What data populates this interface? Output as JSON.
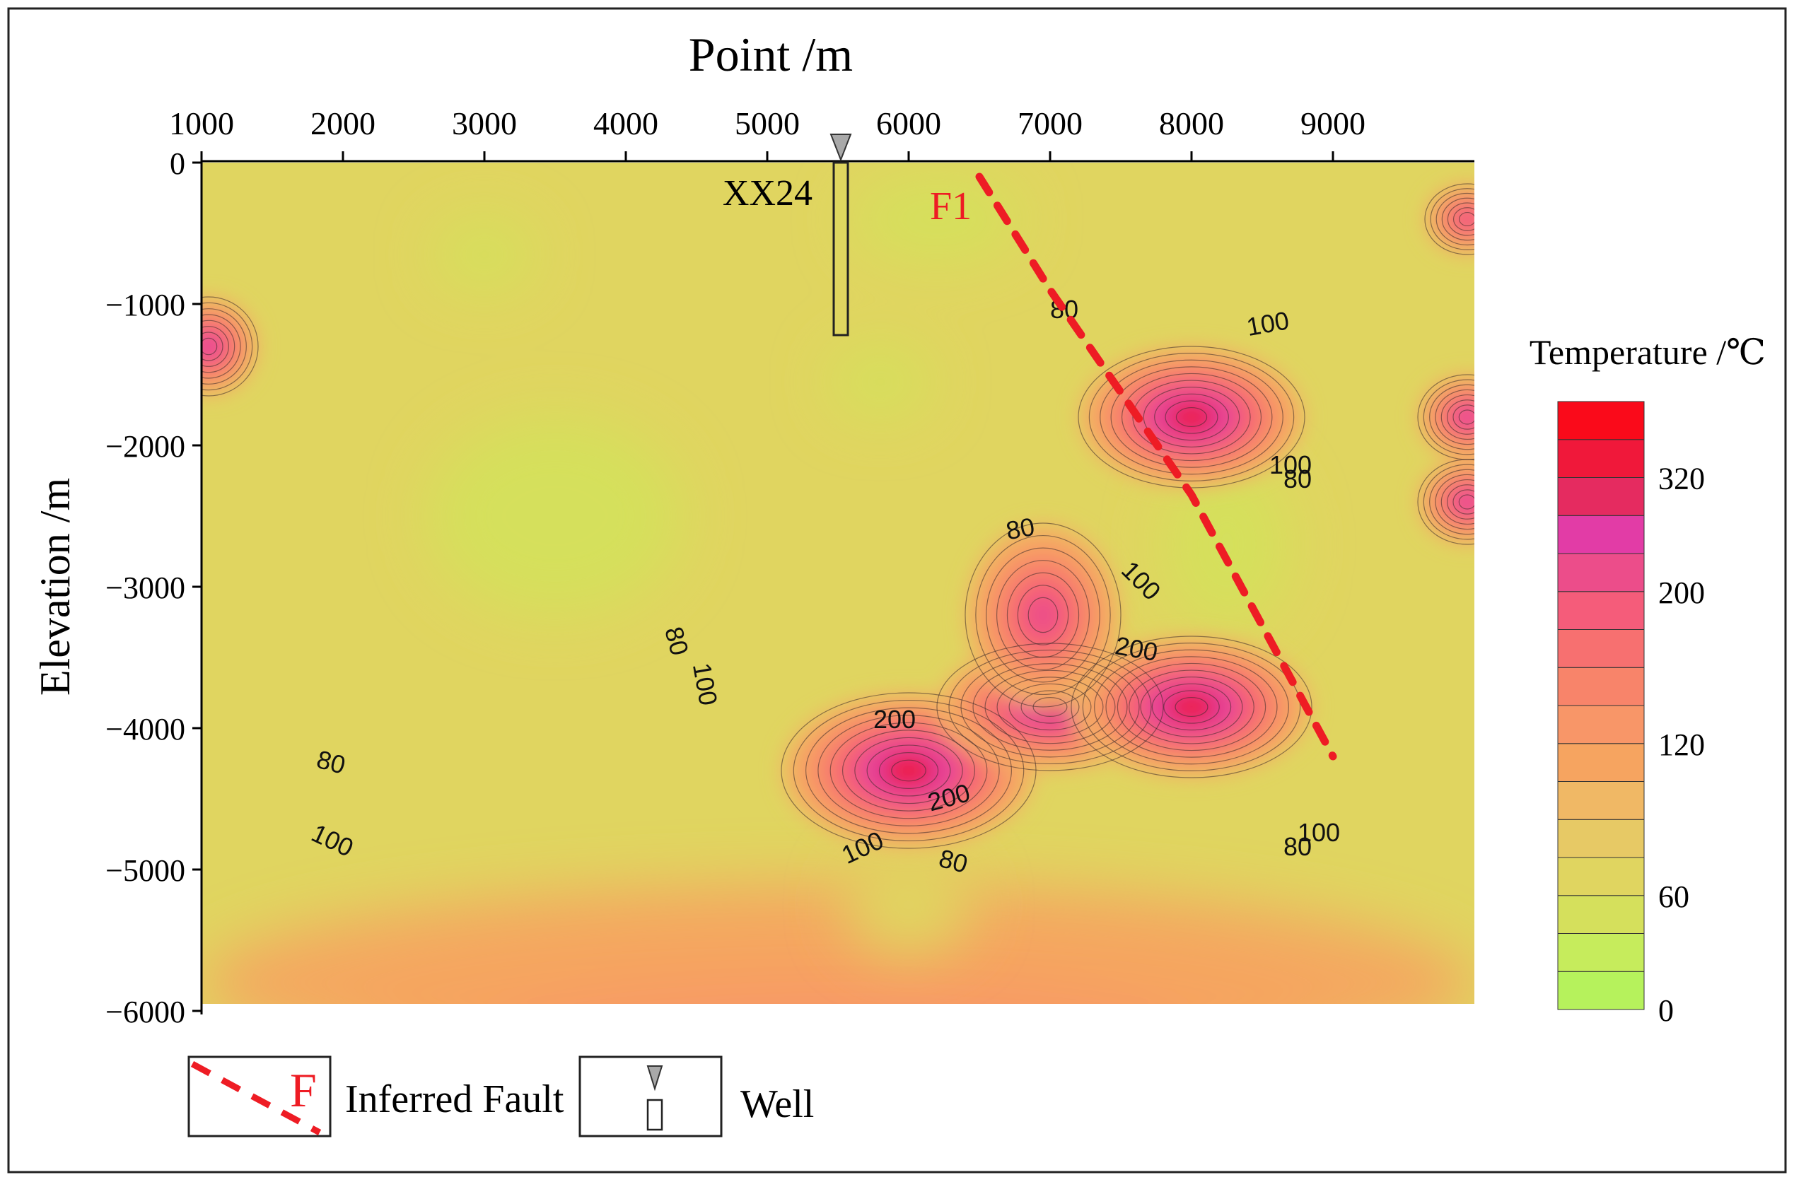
{
  "chart_data": {
    "type": "heatmap",
    "title": "Point /m",
    "xlabel": "Point /m",
    "ylabel": "Elevation /m",
    "xlim": [
      1000,
      10000
    ],
    "ylim": [
      -6000,
      0
    ],
    "x_ticks": [
      "1000",
      "2000",
      "3000",
      "4000",
      "5000",
      "6000",
      "7000",
      "8000",
      "9000"
    ],
    "y_ticks": [
      "0",
      "−1000",
      "−2000",
      "−3000",
      "−4000",
      "−5000",
      "−6000"
    ],
    "x_tick_values": [
      1000,
      2000,
      3000,
      4000,
      5000,
      6000,
      7000,
      8000,
      9000
    ],
    "y_tick_values": [
      0,
      -1000,
      -2000,
      -3000,
      -4000,
      -5000,
      -6000
    ],
    "colorbar": {
      "label": "Temperature /℃",
      "tick_labels": [
        "0",
        "60",
        "120",
        "200",
        "320"
      ],
      "tick_values": [
        0,
        60,
        120,
        200,
        320
      ],
      "levels": [
        0,
        20,
        40,
        60,
        70,
        80,
        100,
        120,
        140,
        160,
        180,
        200,
        240,
        280,
        320,
        360
      ],
      "colors": [
        "#b6f25c",
        "#c6ec5c",
        "#d5e05c",
        "#e0d560",
        "#e7c965",
        "#f0b865",
        "#f6a460",
        "#f89668",
        "#f8846a",
        "#f77070",
        "#f55c7a",
        "#ec4d8a",
        "#e23ca6",
        "#e52b60",
        "#f0183a",
        "#fa0a1a"
      ]
    },
    "background_color": "#e0d560",
    "hot_zones": [
      {
        "x": 6000,
        "y": -4300,
        "peak": 340,
        "rx": 900,
        "ry": 550
      },
      {
        "x": 7000,
        "y": -3850,
        "peak": 300,
        "rx": 800,
        "ry": 450
      },
      {
        "x": 8000,
        "y": -3850,
        "peak": 330,
        "rx": 850,
        "ry": 500
      },
      {
        "x": 6950,
        "y": -3200,
        "peak": 230,
        "rx": 550,
        "ry": 650
      },
      {
        "x": 8000,
        "y": -1800,
        "peak": 320,
        "rx": 800,
        "ry": 500
      },
      {
        "x": 1050,
        "y": -1300,
        "peak": 250,
        "rx": 350,
        "ry": 350
      },
      {
        "x": 9950,
        "y": -1800,
        "peak": 260,
        "rx": 350,
        "ry": 300
      },
      {
        "x": 9950,
        "y": -2400,
        "peak": 250,
        "rx": 350,
        "ry": 300
      },
      {
        "x": 9950,
        "y": -400,
        "peak": 200,
        "rx": 300,
        "ry": 250
      },
      {
        "x": 5500,
        "y": -5800,
        "peak": 120,
        "rx": 4500,
        "ry": 700
      }
    ],
    "cool_zones": [
      {
        "x": 3500,
        "y": -2500,
        "value": 45,
        "rx": 900,
        "ry": 700
      },
      {
        "x": 5800,
        "y": -1550,
        "value": 45,
        "rx": 350,
        "ry": 250
      },
      {
        "x": 8250,
        "y": -2700,
        "value": 50,
        "rx": 450,
        "ry": 600
      },
      {
        "x": 6200,
        "y": -400,
        "value": 45,
        "rx": 600,
        "ry": 300
      },
      {
        "x": 3000,
        "y": -650,
        "value": 45,
        "rx": 350,
        "ry": 250
      },
      {
        "x": 6000,
        "y": -5250,
        "value": 60,
        "rx": 450,
        "ry": 350
      }
    ],
    "contour_labels": [
      {
        "text": "80",
        "x": 7100,
        "y": -1100,
        "angle": 0
      },
      {
        "text": "100",
        "x": 8550,
        "y": -1200,
        "angle": -10
      },
      {
        "text": "100",
        "x": 8700,
        "y": -2200,
        "angle": 0
      },
      {
        "text": "80",
        "x": 8750,
        "y": -2300,
        "angle": 0
      },
      {
        "text": "80",
        "x": 6800,
        "y": -2650,
        "angle": -10
      },
      {
        "text": "100",
        "x": 7600,
        "y": -3000,
        "angle": 45
      },
      {
        "text": "200",
        "x": 7600,
        "y": -3500,
        "angle": 10
      },
      {
        "text": "80",
        "x": 4300,
        "y": -3400,
        "angle": 75
      },
      {
        "text": "100",
        "x": 4500,
        "y": -3700,
        "angle": 80
      },
      {
        "text": "200",
        "x": 5900,
        "y": -4000,
        "angle": 0
      },
      {
        "text": "200",
        "x": 6300,
        "y": -4550,
        "angle": -15
      },
      {
        "text": "80",
        "x": 1900,
        "y": -4300,
        "angle": 15
      },
      {
        "text": "100",
        "x": 1900,
        "y": -4850,
        "angle": 25
      },
      {
        "text": "100",
        "x": 5700,
        "y": -4900,
        "angle": -25
      },
      {
        "text": "80",
        "x": 6300,
        "y": -5000,
        "angle": 15
      },
      {
        "text": "100",
        "x": 8900,
        "y": -4800,
        "angle": 0
      },
      {
        "text": "80",
        "x": 8750,
        "y": -4900,
        "angle": 0
      }
    ],
    "fault": {
      "label": "F1",
      "points": [
        [
          6500,
          -100
        ],
        [
          7000,
          -900
        ],
        [
          8000,
          -2350
        ],
        [
          9000,
          -4200
        ]
      ]
    },
    "well": {
      "label": "XX24",
      "x": 5520,
      "top": 0,
      "bottom": -1220
    },
    "legend": {
      "fault_label": "Inferred Fault",
      "fault_symbol": "F",
      "well_label": "Well"
    }
  }
}
